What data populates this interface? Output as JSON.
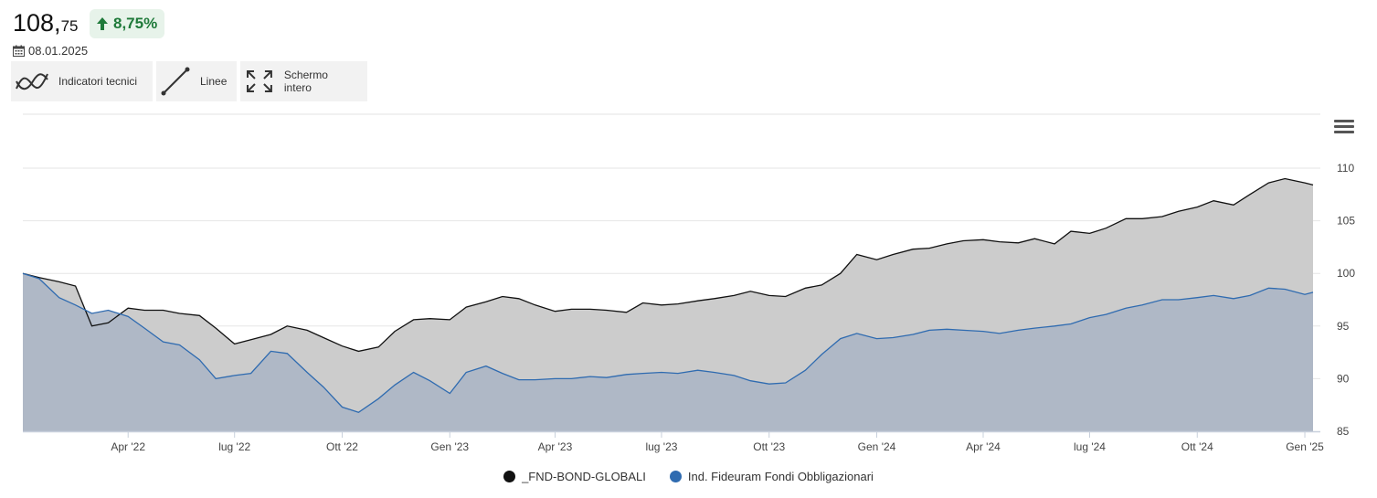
{
  "header": {
    "price_int": "108,",
    "price_dec": "75",
    "change": "8,75%",
    "date": "08.01.2025"
  },
  "toolbar": {
    "indicators_label": "Indicatori tecnici",
    "lines_label": "Linee",
    "fullscreen_label": "Schermo intero"
  },
  "colors": {
    "series1_line": "#111111",
    "series1_fill": "#cccccc",
    "series2_line": "#2f6bb0",
    "series2_fill": "#a9b4c4",
    "positive": "#1f7a3a"
  },
  "chart_data": {
    "type": "area",
    "x": [
      "2022-01-01",
      "2022-01-15",
      "2022-02-01",
      "2022-02-15",
      "2022-03-01",
      "2022-03-15",
      "2022-04-01",
      "2022-04-15",
      "2022-05-01",
      "2022-05-15",
      "2022-06-01",
      "2022-06-15",
      "2022-07-01",
      "2022-07-15",
      "2022-08-01",
      "2022-08-15",
      "2022-09-01",
      "2022-09-15",
      "2022-10-01",
      "2022-10-15",
      "2022-11-01",
      "2022-11-15",
      "2022-12-01",
      "2022-12-15",
      "2023-01-01",
      "2023-01-15",
      "2023-02-01",
      "2023-02-15",
      "2023-03-01",
      "2023-03-15",
      "2023-04-01",
      "2023-04-15",
      "2023-05-01",
      "2023-05-15",
      "2023-06-01",
      "2023-06-15",
      "2023-07-01",
      "2023-07-15",
      "2023-08-01",
      "2023-08-15",
      "2023-09-01",
      "2023-09-15",
      "2023-10-01",
      "2023-10-15",
      "2023-11-01",
      "2023-11-15",
      "2023-12-01",
      "2023-12-15",
      "2024-01-01",
      "2024-01-15",
      "2024-02-01",
      "2024-02-15",
      "2024-03-01",
      "2024-03-15",
      "2024-04-01",
      "2024-04-15",
      "2024-05-01",
      "2024-05-15",
      "2024-06-01",
      "2024-06-15",
      "2024-07-01",
      "2024-07-15",
      "2024-08-01",
      "2024-08-15",
      "2024-09-01",
      "2024-09-15",
      "2024-10-01",
      "2024-10-15",
      "2024-11-01",
      "2024-11-15",
      "2024-12-01",
      "2024-12-15",
      "2025-01-01",
      "2025-01-08"
    ],
    "series": [
      {
        "name": "_FND-BOND-GLOBALI",
        "values": [
          100.0,
          99.6,
          99.2,
          98.8,
          95.0,
          95.3,
          96.7,
          96.5,
          96.5,
          96.2,
          96.0,
          94.8,
          93.3,
          93.7,
          94.2,
          95.0,
          94.6,
          93.9,
          93.1,
          92.6,
          93.0,
          94.5,
          95.6,
          95.7,
          95.6,
          96.8,
          97.3,
          97.8,
          97.6,
          97.0,
          96.4,
          96.6,
          96.6,
          96.5,
          96.3,
          97.2,
          97.0,
          97.1,
          97.4,
          97.6,
          97.9,
          98.3,
          97.9,
          97.8,
          98.6,
          98.9,
          100.0,
          101.8,
          101.3,
          101.8,
          102.3,
          102.4,
          102.8,
          103.1,
          103.2,
          103.0,
          102.9,
          103.3,
          102.8,
          104.0,
          103.8,
          104.3,
          105.2,
          105.2,
          105.4,
          105.9,
          106.3,
          106.9,
          106.5,
          107.5,
          108.6,
          109.0,
          108.6,
          108.4
        ],
        "show_in_legend": true
      },
      {
        "name": "Ind. Fideuram Fondi Obbligazionari",
        "values": [
          100.0,
          99.5,
          97.7,
          97.0,
          96.2,
          96.5,
          95.9,
          94.8,
          93.5,
          93.2,
          91.8,
          90.0,
          90.3,
          90.5,
          92.6,
          92.4,
          90.6,
          89.2,
          87.3,
          86.8,
          88.1,
          89.4,
          90.6,
          89.8,
          88.6,
          90.6,
          91.2,
          90.5,
          89.9,
          89.9,
          90.0,
          90.0,
          90.2,
          90.1,
          90.4,
          90.5,
          90.6,
          90.5,
          90.8,
          90.6,
          90.3,
          89.8,
          89.5,
          89.6,
          90.8,
          92.3,
          93.8,
          94.3,
          93.8,
          93.9,
          94.2,
          94.6,
          94.7,
          94.6,
          94.5,
          94.3,
          94.6,
          94.8,
          95.0,
          95.2,
          95.8,
          96.1,
          96.7,
          97.0,
          97.5,
          97.5,
          97.7,
          97.9,
          97.6,
          97.9,
          98.6,
          98.5,
          98.0,
          98.2
        ],
        "show_in_legend": true
      }
    ],
    "ylim": [
      85,
      112
    ],
    "y_ticks": [
      85,
      90,
      95,
      100,
      105,
      110
    ],
    "x_tick_labels": [
      {
        "date": "2022-04-01",
        "label": "Apr '22"
      },
      {
        "date": "2022-07-01",
        "label": "lug '22"
      },
      {
        "date": "2022-10-01",
        "label": "Ott '22"
      },
      {
        "date": "2023-01-01",
        "label": "Gen '23"
      },
      {
        "date": "2023-04-01",
        "label": "Apr '23"
      },
      {
        "date": "2023-07-01",
        "label": "lug '23"
      },
      {
        "date": "2023-10-01",
        "label": "Ott '23"
      },
      {
        "date": "2024-01-01",
        "label": "Gen '24"
      },
      {
        "date": "2024-04-01",
        "label": "Apr '24"
      },
      {
        "date": "2024-07-01",
        "label": "lug '24"
      },
      {
        "date": "2024-10-01",
        "label": "Ott '24"
      },
      {
        "date": "2025-01-01",
        "label": "Gen '25"
      }
    ],
    "grid": true,
    "legend": "bottom-center"
  }
}
